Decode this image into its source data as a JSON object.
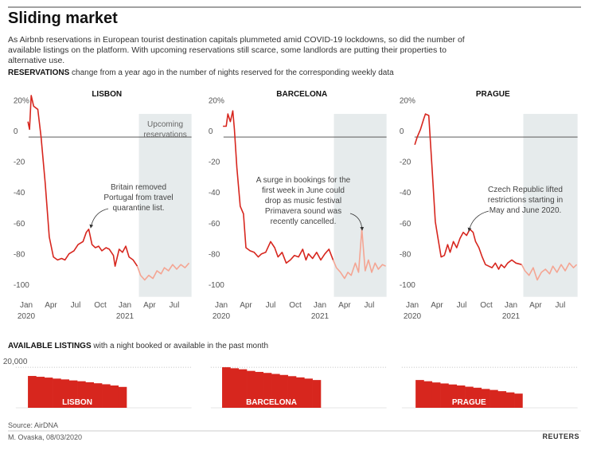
{
  "header": {
    "title": "Sliding market",
    "subtitle": "As Airbnb reservations in European tourist destination capitals plummeted amid COVID-19 lockdowns, so did the number of available listings on the platform. With upcoming reservations still scarce, some landlords are putting their properties to alternative use."
  },
  "reservations_heading": {
    "bold": "RESERVATIONS",
    "rest": "change from a year ago in the number of nights reserved for the corresponding weekly data"
  },
  "listings_heading": {
    "bold": "AVAILABLE LISTINGS",
    "rest": "with a night booked or available in the past month"
  },
  "chart_data": [
    {
      "type": "line",
      "title": "LISBON",
      "xlim": [
        -0.5,
        20.1
      ],
      "ylim": [
        -105,
        28
      ],
      "yticks": [
        {
          "value": 20,
          "label": "20%"
        },
        0,
        -20,
        -40,
        -60,
        -80,
        -100
      ],
      "xticks": [
        {
          "value": 0,
          "label": "Jan"
        },
        {
          "value": 3,
          "label": "Apr"
        },
        {
          "value": 6,
          "label": "Jul"
        },
        {
          "value": 9,
          "label": "Oct"
        },
        {
          "value": 12,
          "label": "Jan"
        },
        {
          "value": 15,
          "label": "Apr"
        },
        {
          "value": 18,
          "label": "Jul"
        }
      ],
      "year_labels": [
        {
          "value": 0,
          "label": "2020"
        },
        {
          "value": 12,
          "label": "2021"
        }
      ],
      "upcoming_from": 13.7,
      "upcoming_label": [
        "Upcoming",
        "reservations"
      ],
      "shade_color": "#e6ebec",
      "annotation": [
        "Britain removed",
        "Portugal from travel",
        "quarantine list."
      ],
      "series": [
        {
          "color": "#d7261e",
          "x": [
            0.2,
            0.4,
            0.6,
            0.9,
            1.4,
            1.8,
            2.3,
            2.8,
            3.3,
            3.8,
            4.3,
            4.7,
            5.2,
            5.8,
            6.3,
            6.9,
            7.3,
            7.6,
            8.0,
            8.4,
            8.8,
            9.2,
            9.7,
            10.1,
            10.6,
            10.8,
            11.3,
            11.7,
            12.1,
            12.5,
            13.0,
            13.5
          ],
          "values": [
            10,
            5,
            27,
            20,
            18,
            0,
            -30,
            -65,
            -78,
            -80,
            -79,
            -80,
            -76,
            -74,
            -70,
            -68,
            -62,
            -60,
            -70,
            -72,
            -71,
            -74,
            -72,
            -73,
            -77,
            -84,
            -73,
            -75,
            -71,
            -78,
            -80,
            -84
          ]
        },
        {
          "color": "#f4a593",
          "x": [
            13.5,
            13.9,
            14.4,
            14.9,
            15.4,
            15.9,
            16.4,
            16.8,
            17.3,
            17.8,
            18.3,
            18.8,
            19.3,
            19.8
          ],
          "values": [
            -84,
            -90,
            -93,
            -90,
            -92,
            -87,
            -89,
            -85,
            -87,
            -83,
            -86,
            -83,
            -85,
            -82
          ]
        }
      ]
    },
    {
      "type": "line",
      "title": "BARCELONA",
      "xlim": [
        -0.5,
        20.1
      ],
      "ylim": [
        -105,
        28
      ],
      "yticks": [
        {
          "value": 20,
          "label": "20%"
        },
        0,
        -20,
        -40,
        -60,
        -80,
        -100
      ],
      "xticks": [
        {
          "value": 0,
          "label": "Jan"
        },
        {
          "value": 3,
          "label": "Apr"
        },
        {
          "value": 6,
          "label": "Jul"
        },
        {
          "value": 9,
          "label": "Oct"
        },
        {
          "value": 12,
          "label": "Jan"
        },
        {
          "value": 15,
          "label": "Apr"
        },
        {
          "value": 18,
          "label": "Jul"
        }
      ],
      "year_labels": [
        {
          "value": 0,
          "label": "2020"
        },
        {
          "value": 12,
          "label": "2021"
        }
      ],
      "upcoming_from": 13.7,
      "shade_color": "#e6ebec",
      "annotation": [
        "A surge in bookings for the",
        "first week in June could",
        "drop as music festival",
        "Primavera sound was",
        "recently cancelled."
      ],
      "series": [
        {
          "color": "#d7261e",
          "x": [
            0.2,
            0.6,
            0.8,
            1.1,
            1.4,
            1.6,
            1.9,
            2.3,
            2.7,
            3.0,
            3.5,
            4.0,
            4.5,
            4.9,
            5.4,
            6.0,
            6.5,
            6.9,
            7.4,
            7.9,
            8.4,
            8.9,
            9.4,
            9.9,
            10.3,
            10.6,
            11.1,
            11.6,
            12.1,
            12.6,
            13.1,
            13.6
          ],
          "values": [
            7,
            7,
            15,
            10,
            17,
            5,
            -20,
            -45,
            -50,
            -72,
            -74,
            -75,
            -78,
            -76,
            -75,
            -68,
            -72,
            -78,
            -75,
            -82,
            -80,
            -77,
            -78,
            -73,
            -80,
            -76,
            -79,
            -75,
            -80,
            -76,
            -73,
            -80
          ]
        },
        {
          "color": "#f4a593",
          "x": [
            13.6,
            14.0,
            14.5,
            15.0,
            15.4,
            15.8,
            16.3,
            16.7,
            17.1,
            17.5,
            17.9,
            18.3,
            18.7,
            19.1,
            19.6,
            20.0
          ],
          "values": [
            -80,
            -85,
            -88,
            -92,
            -88,
            -90,
            -82,
            -88,
            -60,
            -87,
            -80,
            -88,
            -82,
            -86,
            -83,
            -84
          ]
        }
      ]
    },
    {
      "type": "line",
      "title": "PRAGUE",
      "xlim": [
        -0.5,
        20.1
      ],
      "ylim": [
        -105,
        28
      ],
      "yticks": [
        {
          "value": 20,
          "label": "20%"
        },
        0,
        -20,
        -40,
        -60,
        -80,
        -100
      ],
      "xticks": [
        {
          "value": 0,
          "label": "Jan"
        },
        {
          "value": 3,
          "label": "Apr"
        },
        {
          "value": 6,
          "label": "Jul"
        },
        {
          "value": 9,
          "label": "Oct"
        },
        {
          "value": 12,
          "label": "Jan"
        },
        {
          "value": 15,
          "label": "Apr"
        },
        {
          "value": 18,
          "label": "Jul"
        }
      ],
      "year_labels": [
        {
          "value": 0,
          "label": "2020"
        },
        {
          "value": 12,
          "label": "2021"
        }
      ],
      "upcoming_from": 13.5,
      "shade_color": "#e6ebec",
      "annotation": [
        "Czech Republic lifted",
        "restrictions starting in",
        "May and June 2020."
      ],
      "series": [
        {
          "color": "#d7261e",
          "x": [
            0.3,
            0.6,
            1.0,
            1.4,
            1.6,
            2.0,
            2.4,
            2.8,
            3.1,
            3.5,
            3.9,
            4.3,
            4.6,
            5.0,
            5.4,
            5.8,
            6.2,
            6.6,
            7.0,
            7.4,
            7.7,
            8.1,
            8.5,
            8.9,
            9.3,
            9.7,
            10.1,
            10.5,
            10.8,
            11.2,
            11.6,
            12.1,
            12.6,
            13.3
          ],
          "values": [
            -5,
            0,
            5,
            12,
            15,
            14,
            -20,
            -55,
            -65,
            -78,
            -77,
            -70,
            -75,
            -68,
            -72,
            -66,
            -62,
            -64,
            -60,
            -62,
            -68,
            -72,
            -78,
            -83,
            -84,
            -85,
            -82,
            -86,
            -83,
            -85,
            -82,
            -80,
            -82,
            -83
          ]
        },
        {
          "color": "#f4a593",
          "x": [
            13.3,
            13.7,
            14.2,
            14.7,
            15.2,
            15.7,
            16.2,
            16.7,
            17.1,
            17.6,
            18.1,
            18.6,
            19.1,
            19.6,
            20.0
          ],
          "values": [
            -83,
            -87,
            -90,
            -85,
            -93,
            -88,
            -86,
            -89,
            -84,
            -88,
            -83,
            -87,
            -82,
            -85,
            -83
          ]
        }
      ]
    },
    {
      "type": "bar",
      "title": "LISBON",
      "color": "#d7261e",
      "ylim": [
        0,
        22000
      ],
      "xlim": [
        -0.5,
        20.1
      ],
      "yticks": [
        {
          "value": 20000,
          "label": "20,000"
        }
      ],
      "show_tick_labels": true,
      "x": [
        0.2,
        1.2,
        2.2,
        3.2,
        4.2,
        5.2,
        6.2,
        7.2,
        8.2,
        9.2,
        10.2,
        11.2
      ],
      "values": [
        15700,
        15300,
        14900,
        14400,
        14000,
        13500,
        13100,
        12600,
        12100,
        11600,
        11000,
        10300
      ]
    },
    {
      "type": "bar",
      "title": "BARCELONA",
      "color": "#d7261e",
      "ylim": [
        0,
        22000
      ],
      "xlim": [
        -0.5,
        20.1
      ],
      "yticks": [
        20000
      ],
      "show_tick_labels": false,
      "x": [
        0.1,
        1.1,
        2.1,
        3.1,
        4.1,
        5.1,
        6.1,
        7.1,
        8.1,
        9.1,
        10.1,
        11.1
      ],
      "values": [
        20000,
        19500,
        19000,
        18200,
        17700,
        17200,
        16700,
        16200,
        15600,
        15000,
        14400,
        13700
      ]
    },
    {
      "type": "bar",
      "title": "PRAGUE",
      "color": "#d7261e",
      "ylim": [
        0,
        22000
      ],
      "xlim": [
        -0.5,
        20.1
      ],
      "yticks": [
        20000
      ],
      "show_tick_labels": false,
      "x": [
        0.4,
        1.4,
        2.4,
        3.4,
        4.4,
        5.4,
        6.4,
        7.4,
        8.4,
        9.4,
        10.4,
        11.4,
        12.4
      ],
      "values": [
        13700,
        13100,
        12500,
        12000,
        11500,
        11000,
        10400,
        9900,
        9300,
        8800,
        8200,
        7600,
        7000
      ]
    }
  ],
  "footer": {
    "source": "Source: AirDNA",
    "byline": "M. Ovaska, 08/03/2020",
    "logo": "REUTERS"
  }
}
